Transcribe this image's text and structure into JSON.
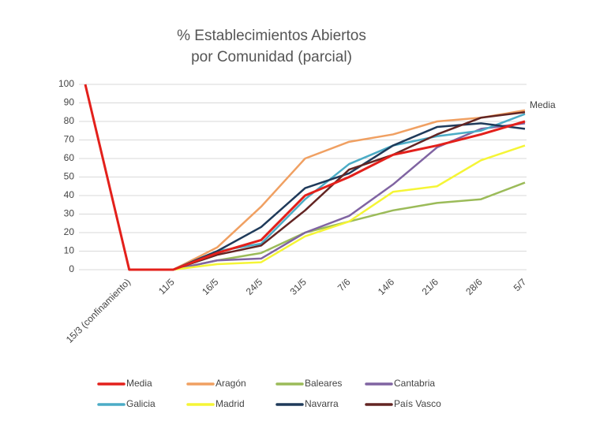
{
  "chart_data": {
    "type": "line",
    "title": [
      "% Establecimientos Abiertos",
      "por Comunidad (parcial)"
    ],
    "categories": [
      null,
      "15/3 (confinamiento)",
      "11/5",
      "16/5",
      "24/5",
      "31/5",
      "7/6",
      "14/6",
      "21/6",
      "28/6",
      "5/7"
    ],
    "series": [
      {
        "name": "Media",
        "color": "#e3201b",
        "values": [
          100,
          0,
          0,
          9,
          16,
          40,
          50,
          62,
          67,
          73,
          80
        ]
      },
      {
        "name": "Aragón",
        "color": "#f0a062",
        "values": [
          null,
          0,
          0,
          12,
          34,
          60,
          69,
          73,
          80,
          82,
          86
        ]
      },
      {
        "name": "Baleares",
        "color": "#9bbb59",
        "values": [
          null,
          0,
          0,
          5,
          9,
          20,
          26,
          32,
          36,
          38,
          47
        ]
      },
      {
        "name": "Cantabria",
        "color": "#8064a2",
        "values": [
          null,
          0,
          0,
          5,
          6,
          20,
          29,
          46,
          66,
          76,
          79
        ]
      },
      {
        "name": "Galicia",
        "color": "#4bacc6",
        "values": [
          null,
          0,
          0,
          10,
          14,
          38,
          57,
          67,
          72,
          75,
          84
        ]
      },
      {
        "name": "Madrid",
        "color": "#f5f536",
        "values": [
          null,
          0,
          0,
          3,
          4,
          18,
          26,
          42,
          45,
          59,
          67
        ]
      },
      {
        "name": "Navarra",
        "color": "#1f3a5a",
        "values": [
          null,
          0,
          0,
          10,
          23,
          44,
          52,
          67,
          77,
          79,
          76
        ]
      },
      {
        "name": "País Vasco",
        "color": "#632523",
        "values": [
          null,
          0,
          0,
          8,
          13,
          32,
          54,
          62,
          73,
          82,
          85
        ]
      }
    ],
    "annotation": "Media",
    "ylim": [
      0,
      100
    ],
    "yticks": [
      0,
      10,
      20,
      30,
      40,
      50,
      60,
      70,
      80,
      90,
      100
    ],
    "grid": true
  }
}
